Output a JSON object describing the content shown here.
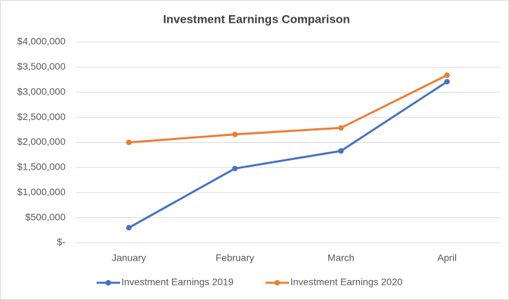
{
  "chart_data": {
    "type": "line",
    "title": "Investment Earnings Comparison",
    "categories": [
      "January",
      "February",
      "March",
      "April"
    ],
    "series": [
      {
        "name": "Investment Earnings 2019",
        "color": "#4472c4",
        "values": [
          300000,
          1480000,
          1830000,
          3210000
        ]
      },
      {
        "name": "Investment Earnings 2020",
        "color": "#ed7d31",
        "values": [
          2000000,
          2160000,
          2290000,
          3340000
        ]
      }
    ],
    "ylim": [
      0,
      4000000
    ],
    "yticks": [
      {
        "value": 0,
        "label": "$-"
      },
      {
        "value": 500000,
        "label": "$500,000"
      },
      {
        "value": 1000000,
        "label": "$1,000,000"
      },
      {
        "value": 1500000,
        "label": "$1,500,000"
      },
      {
        "value": 2000000,
        "label": "$2,000,000"
      },
      {
        "value": 2500000,
        "label": "$2,500,000"
      },
      {
        "value": 3000000,
        "label": "$3,000,000"
      },
      {
        "value": 3500000,
        "label": "$3,500,000"
      },
      {
        "value": 4000000,
        "label": "$4,000,000"
      }
    ],
    "grid": true,
    "legend": "bottom"
  }
}
